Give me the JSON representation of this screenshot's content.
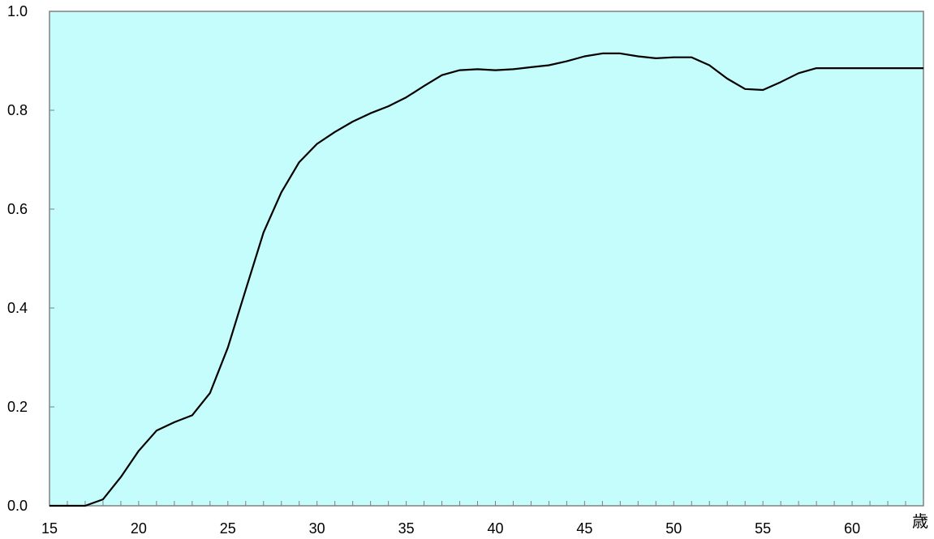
{
  "chart_data": {
    "type": "line",
    "title": "",
    "xlabel": "歳",
    "ylabel": "",
    "xlim": [
      15,
      64
    ],
    "ylim": [
      0,
      1.0
    ],
    "x_ticks": [
      15,
      20,
      25,
      30,
      35,
      40,
      45,
      50,
      55,
      60
    ],
    "x_tick_labels": [
      "15",
      "20",
      "25",
      "30",
      "35",
      "40",
      "45",
      "50",
      "55",
      "60"
    ],
    "y_ticks": [
      0,
      0.2,
      0.4,
      0.6,
      0.8,
      1.0
    ],
    "y_tick_labels": [
      "0.0",
      "0.2",
      "0.4",
      "0.6",
      "0.8",
      "1.0"
    ],
    "grid": false,
    "legend": false,
    "colors": {
      "plot_background": "#c5fcfc",
      "line": "#000000",
      "axis": "#808080"
    },
    "series": [
      {
        "x": [
          15,
          16,
          17,
          18,
          19,
          20,
          21,
          22,
          23,
          24,
          25,
          26,
          27,
          28,
          29,
          30,
          31,
          32,
          33,
          34,
          35,
          36,
          37,
          38,
          39,
          40,
          41,
          42,
          43,
          44,
          45,
          46,
          47,
          48,
          49,
          50,
          51,
          52,
          53,
          54,
          55,
          56,
          57,
          58,
          59,
          60,
          61,
          62,
          63,
          64
        ],
        "values": [
          0.0,
          0.0,
          0.0,
          0.013,
          0.058,
          0.111,
          0.152,
          0.169,
          0.183,
          0.228,
          0.32,
          0.437,
          0.553,
          0.634,
          0.695,
          0.732,
          0.756,
          0.777,
          0.794,
          0.808,
          0.826,
          0.849,
          0.871,
          0.881,
          0.883,
          0.881,
          0.883,
          0.887,
          0.891,
          0.899,
          0.909,
          0.915,
          0.915,
          0.909,
          0.905,
          0.907,
          0.907,
          0.891,
          0.864,
          0.843,
          0.841,
          0.857,
          0.875,
          0.885,
          0.885,
          0.885,
          0.885,
          0.885,
          0.885,
          0.885
        ]
      }
    ]
  }
}
